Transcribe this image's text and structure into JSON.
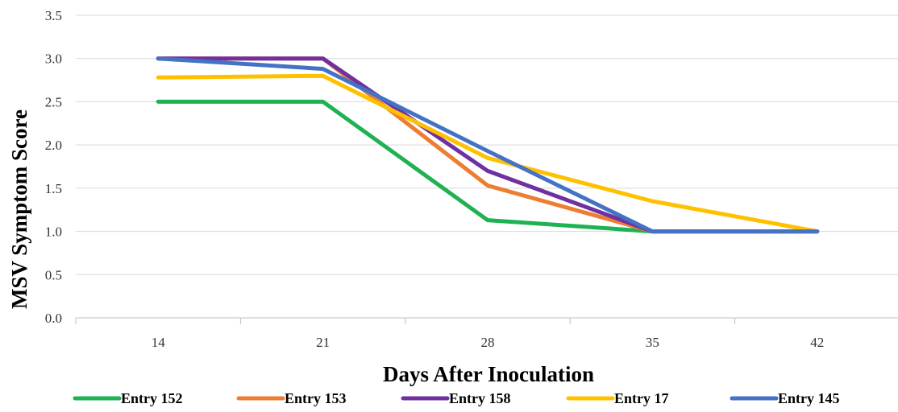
{
  "chart_data": {
    "type": "line",
    "xlabel": "Days After Inoculation",
    "ylabel": "MSV Symptom Score",
    "categories": [
      "14",
      "21",
      "28",
      "35",
      "42"
    ],
    "ylim": [
      0,
      3.5
    ],
    "yticks": [
      "0.0",
      "0.5",
      "1.0",
      "1.5",
      "2.0",
      "2.5",
      "3.0",
      "3.5"
    ],
    "grid": true,
    "legend_position": "bottom",
    "series": [
      {
        "name": "Entry 152",
        "color": "#1fb152",
        "values": [
          2.5,
          2.5,
          1.13,
          1.0,
          1.0
        ]
      },
      {
        "name": "Entry 153",
        "color": "#ed7d31",
        "values": [
          3.0,
          3.0,
          1.53,
          1.0,
          1.0
        ]
      },
      {
        "name": "Entry 158",
        "color": "#7030a0",
        "values": [
          3.0,
          3.0,
          1.7,
          1.0,
          1.0
        ]
      },
      {
        "name": "Entry 17",
        "color": "#ffc000",
        "values": [
          2.78,
          2.8,
          1.85,
          1.35,
          1.0
        ]
      },
      {
        "name": "Entry 145",
        "color": "#4472c4",
        "values": [
          3.0,
          2.88,
          1.93,
          1.0,
          1.0
        ]
      }
    ]
  }
}
